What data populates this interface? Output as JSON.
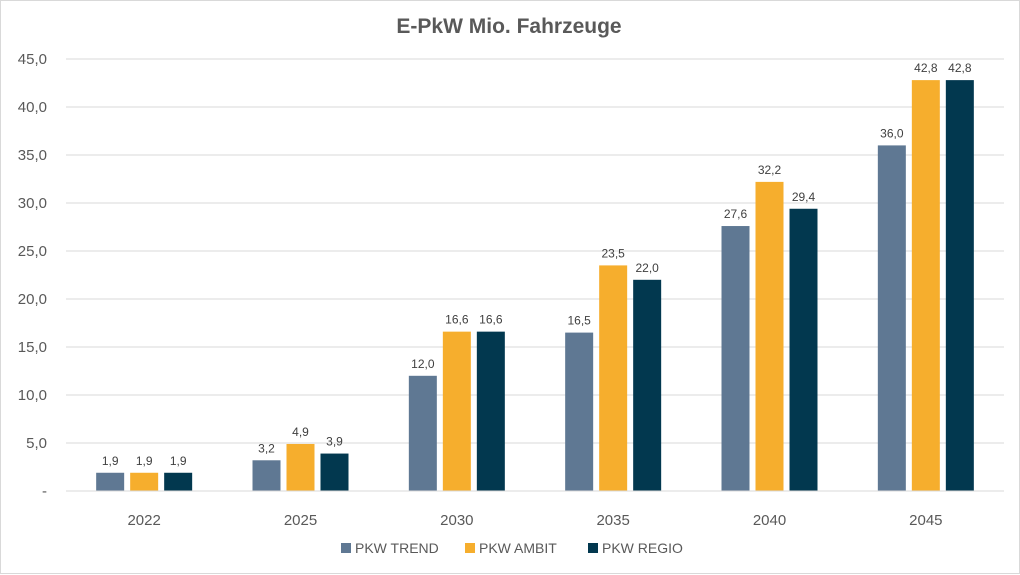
{
  "chart_data": {
    "type": "bar",
    "title": "E-PkW Mio. Fahrzeuge",
    "xlabel": "",
    "ylabel": "",
    "categories": [
      "2022",
      "2025",
      "2030",
      "2035",
      "2040",
      "2045"
    ],
    "series": [
      {
        "name": "PKW TREND",
        "color": "#5f7893",
        "values": [
          1.9,
          3.2,
          12.0,
          16.5,
          27.6,
          36.0
        ],
        "labels": [
          "1,9",
          "3,2",
          "12,0",
          "16,5",
          "27,6",
          "36,0"
        ]
      },
      {
        "name": "PKW AMBIT",
        "color": "#f6ae2d",
        "values": [
          1.9,
          4.9,
          16.6,
          23.5,
          32.2,
          42.8
        ],
        "labels": [
          "1,9",
          "4,9",
          "16,6",
          "23,5",
          "32,2",
          "42,8"
        ]
      },
      {
        "name": "PKW REGIO",
        "color": "#02384f",
        "values": [
          1.9,
          3.9,
          16.6,
          22.0,
          29.4,
          42.8
        ],
        "labels": [
          "1,9",
          "3,9",
          "16,6",
          "22,0",
          "29,4",
          "42,8"
        ]
      }
    ],
    "ylim": [
      0,
      45
    ],
    "yticks": [
      0,
      5,
      10,
      15,
      20,
      25,
      30,
      35,
      40,
      45
    ],
    "ytick_labels": [
      "-",
      "5,0",
      "10,0",
      "15,0",
      "20,0",
      "25,0",
      "30,0",
      "35,0",
      "40,0",
      "45,0"
    ],
    "grid": true,
    "legend_position": "bottom"
  }
}
